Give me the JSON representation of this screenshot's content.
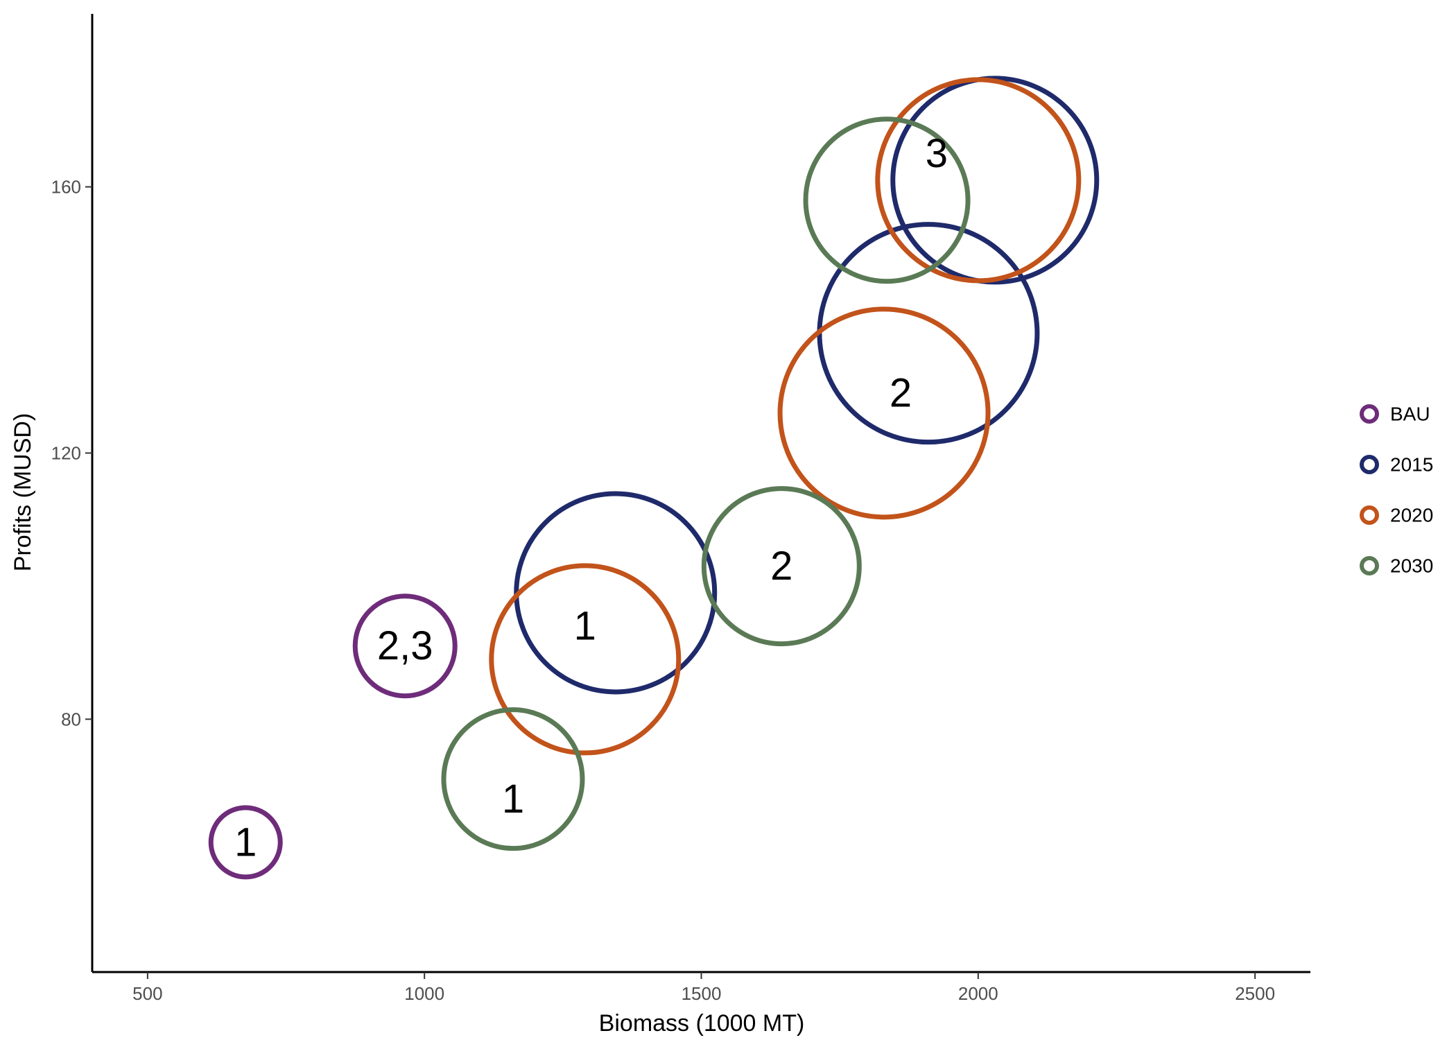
{
  "chart_data": {
    "type": "scatter",
    "xlabel": "Biomass (1000 MT)",
    "ylabel": "Profits (MUSD)",
    "xlim": [
      400,
      2600
    ],
    "ylim": [
      42,
      186
    ],
    "xticks": [
      500,
      1000,
      1500,
      2000,
      2500
    ],
    "yticks": [
      80,
      120,
      160
    ],
    "grid": false,
    "legend_position": "right",
    "marker": "open-circle-size-encoded",
    "series": [
      {
        "name": "BAU",
        "color": "#6E2C7A",
        "points": [
          {
            "x": 677,
            "y": 61.5,
            "size": 50,
            "label": "1"
          },
          {
            "x": 965,
            "y": 91,
            "size": 72,
            "label": "2,3"
          }
        ]
      },
      {
        "name": "2015",
        "color": "#1F2A6B",
        "points": [
          {
            "x": 1345,
            "y": 99,
            "size": 143,
            "label": "1"
          },
          {
            "x": 1910,
            "y": 138,
            "size": 157,
            "label": "2"
          },
          {
            "x": 2030,
            "y": 161,
            "size": 147,
            "label": "3"
          }
        ]
      },
      {
        "name": "2020",
        "color": "#C2531A",
        "points": [
          {
            "x": 1290,
            "y": 89,
            "size": 135,
            "label": "1"
          },
          {
            "x": 1830,
            "y": 126,
            "size": 150,
            "label": "2"
          },
          {
            "x": 2000,
            "y": 161,
            "size": 145,
            "label": "3"
          }
        ]
      },
      {
        "name": "2030",
        "color": "#5A7A55",
        "points": [
          {
            "x": 1160,
            "y": 71,
            "size": 100,
            "label": "1"
          },
          {
            "x": 1645,
            "y": 103,
            "size": 112,
            "label": "2"
          },
          {
            "x": 1835,
            "y": 158,
            "size": 117,
            "label": "3"
          }
        ]
      }
    ],
    "annotations": [
      {
        "text": "1",
        "x": 677,
        "y": 61.5
      },
      {
        "text": "2,3",
        "x": 965,
        "y": 91
      },
      {
        "text": "1",
        "x": 1160,
        "y": 68
      },
      {
        "text": "1",
        "x": 1290,
        "y": 94
      },
      {
        "text": "2",
        "x": 1645,
        "y": 103
      },
      {
        "text": "2",
        "x": 1860,
        "y": 129
      },
      {
        "text": "3",
        "x": 1925,
        "y": 165
      }
    ]
  }
}
